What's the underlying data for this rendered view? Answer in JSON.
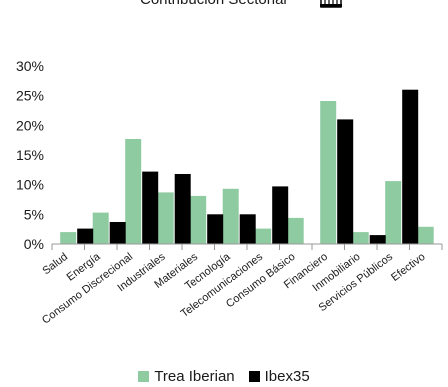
{
  "header": {
    "partial_title": "Contribución Sectorial"
  },
  "colors": {
    "trea": "#8ecba1",
    "ibex": "#000000",
    "axis": "#999999"
  },
  "chart_data": {
    "type": "bar",
    "categories": [
      "Salud",
      "Energía",
      "Consumo Discrecional",
      "Industriales",
      "Materiales",
      "Tecnología",
      "Telecomunicaciones",
      "Consumo Básico",
      "Financiero",
      "Inmobiliario",
      "Servicios Públicos",
      "Efectivo"
    ],
    "series": [
      {
        "name": "Trea Iberian",
        "values": [
          2.0,
          5.3,
          17.7,
          8.7,
          8.1,
          9.3,
          2.6,
          4.4,
          24.1,
          2.0,
          10.6,
          2.9
        ]
      },
      {
        "name": "Ibex35",
        "values": [
          2.6,
          3.7,
          12.2,
          11.8,
          5.0,
          5.0,
          9.7,
          0,
          21.0,
          1.5,
          26.0,
          0
        ]
      }
    ],
    "ylim": [
      0,
      30
    ],
    "yticks": [
      "0%",
      "5%",
      "10%",
      "15%",
      "20%",
      "25%",
      "30%"
    ],
    "legend_position": "bottom"
  }
}
